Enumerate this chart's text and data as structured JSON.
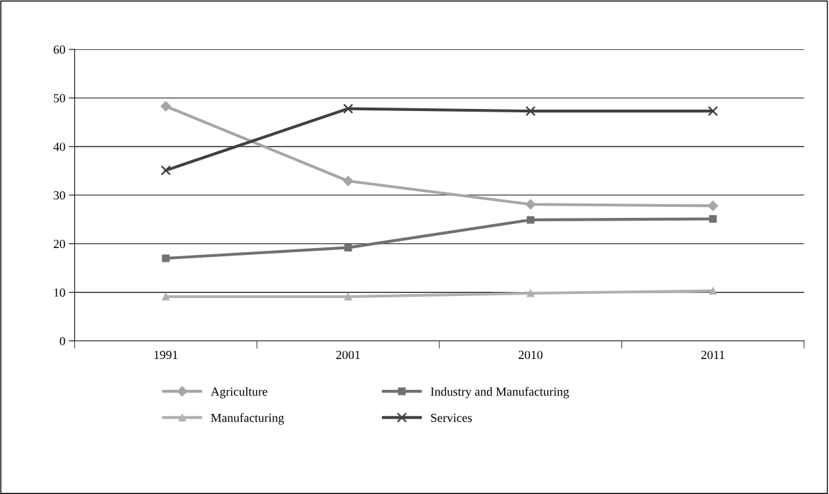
{
  "chart_data": {
    "type": "line",
    "categories": [
      "1991",
      "2001",
      "2010",
      "2011"
    ],
    "series": [
      {
        "name": "Agriculture",
        "color": "#a6a6a6",
        "marker": "diamond",
        "values": [
          48.3,
          32.9,
          28.1,
          27.8
        ]
      },
      {
        "name": "Industry and Manufacturing",
        "color": "#707070",
        "marker": "square",
        "values": [
          17.0,
          19.2,
          24.9,
          25.1
        ]
      },
      {
        "name": "Manufacturing",
        "color": "#b0b0b0",
        "marker": "triangle",
        "values": [
          9.1,
          9.1,
          9.8,
          10.3
        ]
      },
      {
        "name": "Services",
        "color": "#404040",
        "marker": "cross",
        "values": [
          35.1,
          47.8,
          47.3,
          47.3
        ]
      }
    ],
    "ylim": [
      0,
      60
    ],
    "yticks": [
      0,
      10,
      20,
      30,
      40,
      50,
      60
    ],
    "grid": "y",
    "legend": "bottom",
    "line_style": "solid"
  }
}
